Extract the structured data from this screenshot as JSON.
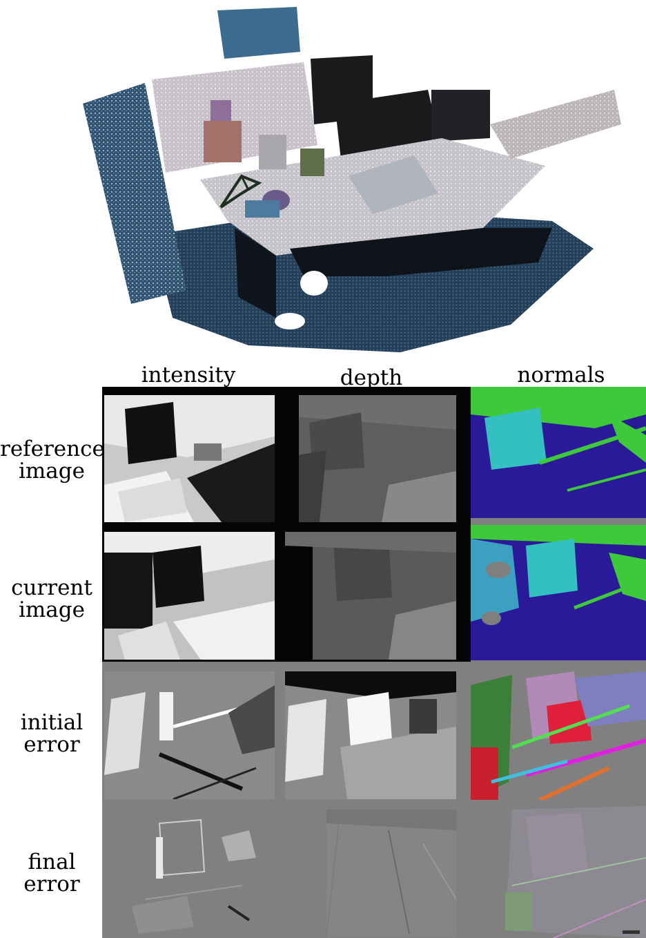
{
  "figure": {
    "columns": [
      "intensity",
      "depth",
      "normals"
    ],
    "rows": [
      {
        "line1": "reference",
        "line2": "image"
      },
      {
        "line1": "current",
        "line2": "image"
      },
      {
        "line1": "initial",
        "line2": "error"
      },
      {
        "line1": "final",
        "line2": "error"
      }
    ]
  },
  "colors": {
    "grid_bg_dark": "#050505",
    "grid_bg_gray": "#808080",
    "normals_green": "#3ec93a",
    "normals_blue": "#2a1a9a",
    "normals_cyan": "#34c0c0",
    "cloud_blue": "#2b4a68"
  }
}
